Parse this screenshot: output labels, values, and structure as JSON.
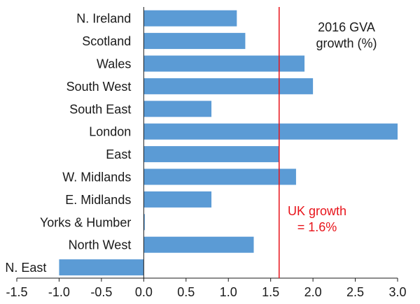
{
  "chart_data": {
    "type": "bar",
    "orientation": "horizontal",
    "categories": [
      "N. Ireland",
      "Scotland",
      "Wales",
      "South West",
      "South East",
      "London",
      "East",
      "W. Midlands",
      "E. Midlands",
      "Yorks & Humber",
      "North West",
      "N. East"
    ],
    "values": [
      1.1,
      1.2,
      1.9,
      2.0,
      0.8,
      3.0,
      1.6,
      1.8,
      0.8,
      0.0,
      1.3,
      -1.0
    ],
    "xlim": [
      -1.5,
      3.0
    ],
    "xticks": [
      -1.5,
      -1.0,
      -0.5,
      0.0,
      0.5,
      1.0,
      1.5,
      2.0,
      2.5,
      3.0
    ],
    "xtick_labels": [
      "-1.5",
      "-1.0",
      "-0.5",
      "0.0",
      "0.5",
      "1.0",
      "1.5",
      "2.0",
      "2.5",
      "3.0"
    ],
    "title_lines": [
      "2016 GVA",
      "growth (%)"
    ],
    "reference_line": {
      "value": 1.6,
      "label_lines": [
        "UK growth",
        "= 1.6%"
      ],
      "color": "#e8141b"
    },
    "bar_color": "#5b9bd5",
    "grid": false
  }
}
